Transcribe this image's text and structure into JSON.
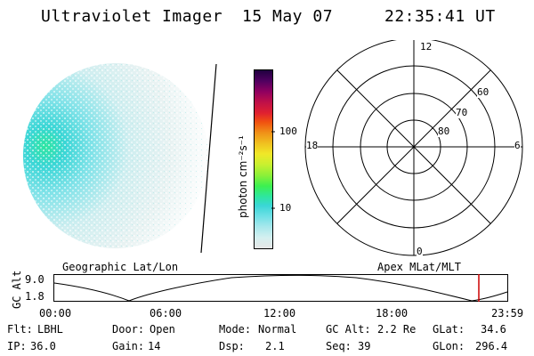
{
  "header": {
    "instrument": "Ultraviolet Imager",
    "date": "15 May 07",
    "time": "22:35:41 UT"
  },
  "colorbar": {
    "unit_label": "photon cm⁻²s⁻¹",
    "ticks": [
      "100",
      "10"
    ],
    "colors": [
      "#e6e6e6",
      "#d4f0f0",
      "#a8e8ec",
      "#6fe0e6",
      "#3ad6d6",
      "#2ee6a0",
      "#3cf050",
      "#8cf038",
      "#c8f030",
      "#f0e828",
      "#f0c020",
      "#f09018",
      "#f05010",
      "#e02030",
      "#c01048",
      "#900060",
      "#500060",
      "#200040"
    ]
  },
  "polar_plot": {
    "mlt_labels": {
      "top": "12",
      "left": "18",
      "right": "6",
      "bottom": "0"
    },
    "lat_labels": [
      "60",
      "70",
      "80"
    ]
  },
  "gc_alt_plot": {
    "left_title": "Geographic Lat/Lon",
    "right_title": "Apex MLat/MLT",
    "axis_label": "GC Alt",
    "y_ticks": [
      "9.0",
      "1.8"
    ],
    "x_ticks": [
      "00:00",
      "06:00",
      "12:00",
      "18:00",
      "23:59"
    ],
    "marker_color": "#cc0000"
  },
  "info": {
    "row1": [
      {
        "key": "Flt:",
        "val": "LBHL"
      },
      {
        "key": "Door:",
        "val": "Open"
      },
      {
        "key": "Mode:",
        "val": "Normal"
      },
      {
        "key": "GC Alt:",
        "val": "2.2 Re"
      },
      {
        "key": "GLat:",
        "val": "34.6"
      }
    ],
    "row2": [
      {
        "key": "IP:",
        "val": "36.0"
      },
      {
        "key": "Gain:",
        "val": "14"
      },
      {
        "key": "Dsp:",
        "val": "2.1"
      },
      {
        "key": "Seq:",
        "val": "39"
      },
      {
        "key": "GLon:",
        "val": "296.4"
      }
    ]
  }
}
